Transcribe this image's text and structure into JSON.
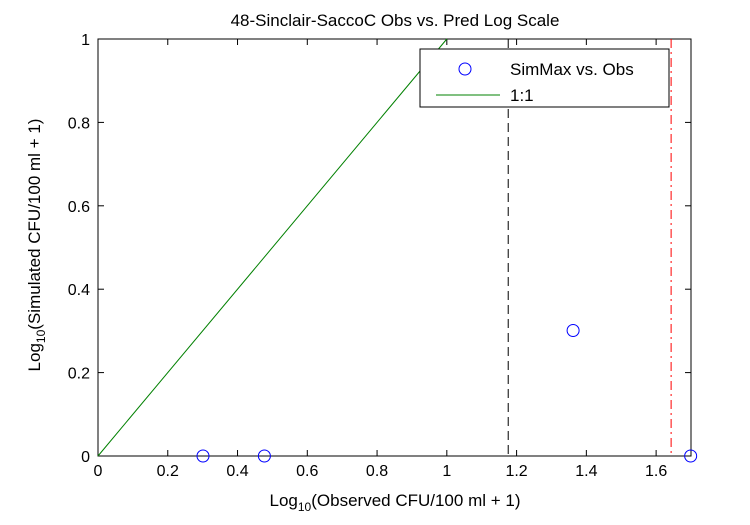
{
  "chart_data": {
    "type": "scatter",
    "title": "48-Sinclair-SaccoC Obs vs. Pred Log Scale",
    "xlabel": {
      "prefix": "Log",
      "sub": "10",
      "rest": "(Observed CFU/100 ml + 1)"
    },
    "ylabel": {
      "prefix": "Log",
      "sub": "10",
      "rest": "(Simulated CFU/100 ml + 1)"
    },
    "xlim": [
      0,
      1.7
    ],
    "ylim": [
      0,
      1
    ],
    "x_ticks": [
      "0",
      "0.2",
      "0.4",
      "0.6",
      "0.8",
      "1",
      "1.2",
      "1.4",
      "1.6"
    ],
    "x_tick_values": [
      0,
      0.2,
      0.4,
      0.6,
      0.8,
      1.0,
      1.2,
      1.4,
      1.6
    ],
    "y_ticks": [
      "0",
      "0.2",
      "0.4",
      "0.6",
      "0.8",
      "1"
    ],
    "y_tick_values": [
      0,
      0.2,
      0.4,
      0.6,
      0.8,
      1.0
    ],
    "grid": false,
    "legend_position": "top-right",
    "series": [
      {
        "name": "SimMax vs. Obs",
        "kind": "scatter",
        "marker": "circle",
        "color": "#0000ff",
        "x": [
          0.301,
          0.477,
          1.362,
          1.699
        ],
        "y": [
          0,
          0,
          0.301,
          0
        ]
      },
      {
        "name": "1:1",
        "kind": "line",
        "color": "#008000",
        "x": [
          0,
          1.0
        ],
        "y": [
          0,
          1.0
        ]
      }
    ],
    "reference_lines": [
      {
        "orientation": "vertical",
        "x": 1.176,
        "color": "#000000",
        "style": "dashed"
      },
      {
        "orientation": "vertical",
        "x": 1.643,
        "color": "#ff0000",
        "style": "dash-dot"
      }
    ]
  }
}
